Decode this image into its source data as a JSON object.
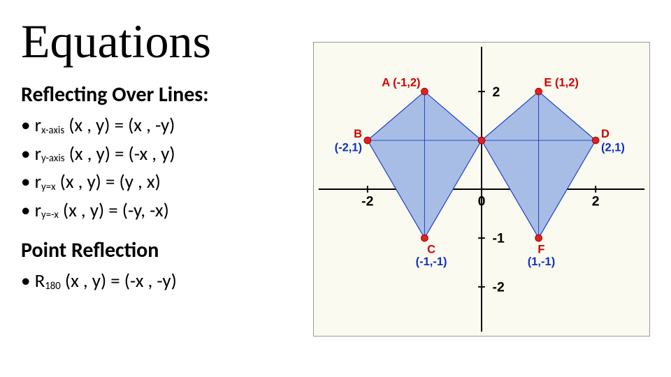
{
  "title": "Equations",
  "section1_label": "Reflecting Over Lines:",
  "bullets1": {
    "r0_sub": "x-axis",
    "r0_eq": " (x , y) = (x , -y)",
    "r1_sub": "y-axis",
    "r1_eq": " (x , y) = (-x , y)",
    "r2_sub": "y=x",
    "r2_eq": " (x , y) = (y , x)",
    "r3_sub": "y=-x",
    "r3_eq": " (x , y) = (-y, -x)"
  },
  "section2_label": "Point Reflection",
  "bullets2": {
    "r0_sub": "180",
    "r0_eq": " (x , y) = (-x , -y)"
  },
  "chart": {
    "type": "diagram",
    "background": "#fbfaf0",
    "axis_color": "#000000",
    "grid_dash": "#999999",
    "kite_fill": "#a8bde5",
    "kite_stroke": "#1a3cc9",
    "point_fill": "#d22",
    "label_red": "#d10000",
    "label_blue": "#1030c0",
    "xlim": [
      -2.5,
      2.5
    ],
    "ylim": [
      -2.5,
      2.5
    ],
    "xtick": [
      -2,
      -1,
      0,
      1,
      2
    ],
    "ytick": [
      -2,
      -1,
      1,
      2
    ],
    "left_kite": {
      "pts": [
        [
          -1,
          2
        ],
        [
          -2,
          1
        ],
        [
          -1,
          -1
        ],
        [
          0,
          1
        ]
      ],
      "labels": {
        "A": "A (-1,2)",
        "B": "B",
        "Bc": "(-2,1)",
        "C": "C",
        "Cc": "(-1,-1)"
      }
    },
    "right_kite": {
      "pts": [
        [
          1,
          2
        ],
        [
          2,
          1
        ],
        [
          1,
          -1
        ],
        [
          0,
          1
        ]
      ],
      "labels": {
        "E": "E (1,2)",
        "D": "D",
        "Dc": "(2,1)",
        "F": "F",
        "Fc": "(1,-1)"
      }
    },
    "title_fontsize": 68,
    "subhead_fontsize": 30,
    "bullet_fontsize": 27
  }
}
